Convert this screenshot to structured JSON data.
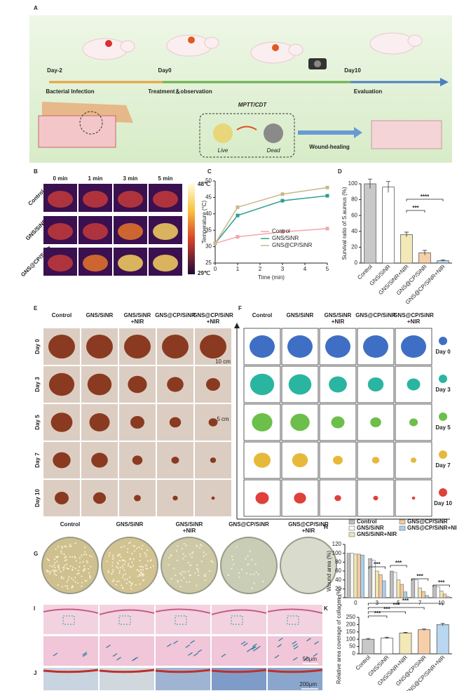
{
  "panels": {
    "A": {
      "label": "A",
      "days": [
        "Day-2",
        "Day0",
        "Day10"
      ],
      "stages": [
        "Bacterial Infection",
        "Treatment＆observation",
        "Evaluation"
      ],
      "method": "MPTT/CDT",
      "live": "Live",
      "dead": "Dead",
      "outcome": "Wound-healing"
    },
    "B": {
      "label": "B",
      "times": [
        "0 min",
        "1 min",
        "3 min",
        "5 min"
      ],
      "groups": [
        "Control",
        "GNS/SiNR",
        "GNS@CP/SiNR"
      ],
      "scale_max": "48℃",
      "scale_min": "29℃"
    },
    "E": {
      "label": "E",
      "groups": [
        [
          "Control"
        ],
        [
          "GNS/SiNR"
        ],
        [
          "GNS/SiNR",
          "+NIR"
        ],
        [
          "GNS@CP/SiNR"
        ],
        [
          "GNS@CP/SiNR",
          "+NIR"
        ]
      ],
      "days": [
        "Day 0",
        "Day 3",
        "Day 5",
        "Day 7",
        "Day 10"
      ]
    },
    "F": {
      "label": "F",
      "groups": [
        [
          "Control"
        ],
        [
          "GNS/SiNR"
        ],
        [
          "GNS/SiNR",
          "+NIR"
        ],
        [
          "GNS@CP/SiNR"
        ],
        [
          "GNS@CP/SiNR",
          "+NIR"
        ]
      ],
      "days": [
        "Day 0",
        "Day 3",
        "Day 5",
        "Day 7",
        "Day 10"
      ],
      "scale_labels": [
        "10 cm",
        "5 cm"
      ]
    },
    "G": {
      "label": "G",
      "groups": [
        [
          "Control"
        ],
        [
          "GNS/SiNR"
        ],
        [
          "GNS/SiNR",
          "+NIR"
        ],
        [
          "GNS@CP/SiNR"
        ],
        [
          "GNS@CP/SiNR",
          "+NIR"
        ]
      ]
    },
    "I": {
      "label": "I",
      "scale_bar": "50μm"
    },
    "J": {
      "label": "J",
      "scale_bar": "200μm"
    }
  },
  "chart_data": [
    {
      "type": "line",
      "panel": "C",
      "xlabel": "Time (min)",
      "ylabel": "Temperature (°C)",
      "x": [
        0,
        1,
        3,
        5
      ],
      "xlim": [
        0,
        5
      ],
      "xticks": [
        0,
        1,
        2,
        3,
        4,
        5
      ],
      "ylim": [
        25,
        50
      ],
      "yticks": [
        25,
        30,
        35,
        40,
        45,
        50
      ],
      "series": [
        {
          "name": "Control",
          "color": "#f4a3ab",
          "values": [
            31,
            33,
            34.5,
            35.5
          ]
        },
        {
          "name": "GNS/SiNR",
          "color": "#2a9d8f",
          "values": [
            31,
            39.5,
            44,
            45.5
          ]
        },
        {
          "name": "GNS@CP/SiNR",
          "color": "#c8b88a",
          "values": [
            31,
            42,
            46,
            48
          ]
        }
      ]
    },
    {
      "type": "bar",
      "panel": "D",
      "ylabel": "Survival ratio of S.aureus (%)",
      "categories": [
        "Control",
        "GNS/SiNR",
        "GNS/SiNR+NIR",
        "GNS@CP/SiNR",
        "GNS@CP/SiNR+NIR"
      ],
      "values": [
        100,
        96,
        36,
        13,
        3
      ],
      "errors": [
        6,
        7,
        3,
        3,
        1
      ],
      "colors": [
        "#c8c8c8",
        "#ffffff",
        "#f3e8b8",
        "#f6cfa8",
        "#b9d7f0"
      ],
      "ylim": [
        0,
        100
      ],
      "yticks": [
        0,
        20,
        40,
        60,
        80,
        100
      ],
      "annotations": [
        "***",
        "****"
      ]
    },
    {
      "type": "grouped-bar",
      "panel": "H",
      "ylabel": "Wound area (%)",
      "categories": [
        "0",
        "3",
        "5",
        "7",
        "10"
      ],
      "ylim": [
        0,
        120
      ],
      "yticks": [
        0,
        20,
        40,
        60,
        80,
        100,
        120
      ],
      "series": [
        {
          "name": "Control",
          "color": "#bdbdbd",
          "values": [
            100,
            88,
            60,
            42,
            28
          ]
        },
        {
          "name": "GNS/SiNR",
          "color": "#f7f7f7",
          "values": [
            100,
            84,
            57,
            40,
            25
          ]
        },
        {
          "name": "GNS/SiNR+NIR",
          "color": "#f0e6b0",
          "values": [
            98,
            60,
            40,
            22,
            15
          ]
        },
        {
          "name": "GNS@CP/SiNR",
          "color": "#f5c9a0",
          "values": [
            98,
            52,
            30,
            14,
            8
          ]
        },
        {
          "name": "GNS@CP/SiNR+NIR",
          "color": "#a8d0ee",
          "values": [
            96,
            38,
            13,
            5,
            2
          ]
        }
      ],
      "annotations": [
        "***",
        "***",
        "***",
        "***"
      ]
    },
    {
      "type": "bar",
      "panel": "K",
      "ylabel": "Relative area coverage of collagen (%)",
      "categories": [
        "Control",
        "GNS/SiNR",
        "GNS/SiNR+NIR",
        "GNS@CP/SiNR",
        "GNS@CP/SiNR+NIR"
      ],
      "values": [
        100,
        108,
        143,
        165,
        200
      ],
      "errors": [
        5,
        6,
        4,
        5,
        9
      ],
      "colors": [
        "#c8c8c8",
        "#ffffff",
        "#f3e8b8",
        "#f6cfa8",
        "#b9d7f0"
      ],
      "ylim": [
        0,
        250
      ],
      "yticks": [
        0,
        50,
        100,
        150,
        200,
        250
      ],
      "annotations": [
        "***",
        "***",
        "***",
        "***"
      ]
    }
  ]
}
